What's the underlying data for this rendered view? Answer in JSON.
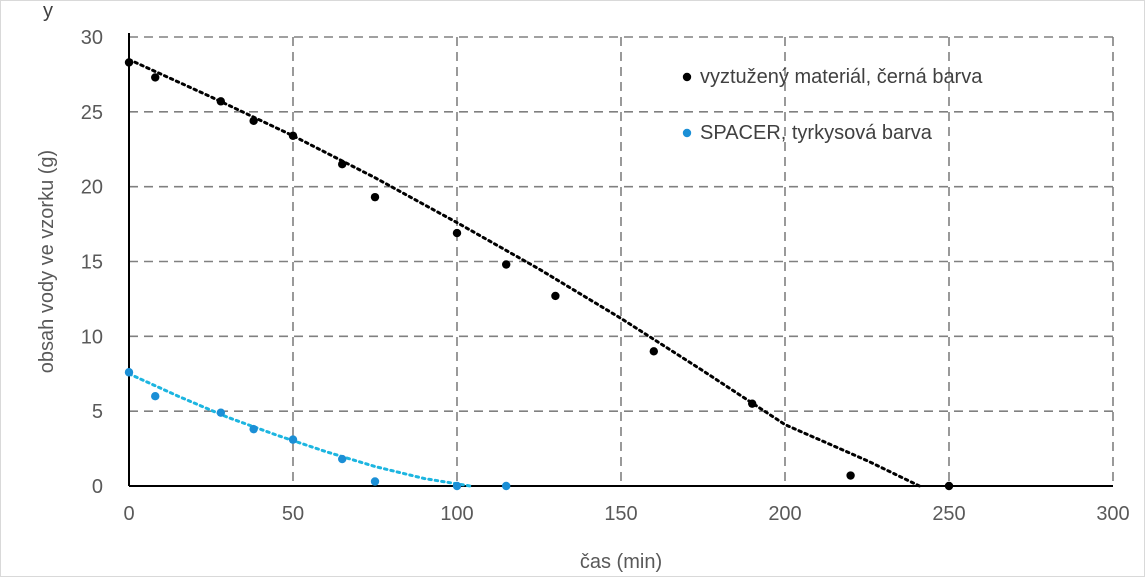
{
  "header_fragment": "y",
  "chart_data": {
    "type": "scatter",
    "title": "",
    "xlabel": "čas (min)",
    "ylabel": "obsah vody ve vzorku (g)",
    "xlim": [
      0,
      300
    ],
    "ylim": [
      0,
      30
    ],
    "x_ticks": [
      0,
      50,
      100,
      150,
      200,
      250,
      300
    ],
    "y_ticks": [
      0,
      5,
      10,
      15,
      20,
      25,
      30
    ],
    "grid": true,
    "grid_style": "dashed",
    "legend_position": "top-right",
    "series": [
      {
        "name": "vyztužený materiál, černá barva",
        "color": "#000000",
        "points": [
          [
            0,
            28.3
          ],
          [
            8,
            27.3
          ],
          [
            28,
            25.7
          ],
          [
            38,
            24.4
          ],
          [
            50,
            23.4
          ],
          [
            65,
            21.5
          ],
          [
            75,
            19.3
          ],
          [
            100,
            16.9
          ],
          [
            115,
            14.8
          ],
          [
            130,
            12.7
          ],
          [
            160,
            9.0
          ],
          [
            190,
            5.5
          ],
          [
            220,
            0.7
          ],
          [
            250,
            0.0
          ]
        ],
        "trendline": {
          "style": "dotted",
          "points": [
            [
              0,
              28.5
            ],
            [
              25,
              26.0
            ],
            [
              50,
              23.4
            ],
            [
              75,
              20.6
            ],
            [
              100,
              17.6
            ],
            [
              125,
              14.5
            ],
            [
              150,
              11.2
            ],
            [
              175,
              7.7
            ],
            [
              200,
              4.1
            ],
            [
              225,
              1.7
            ],
            [
              241,
              0.0
            ]
          ]
        }
      },
      {
        "name": "SPACER, tyrkysová barva",
        "color": "#1b8fd6",
        "trend_color": "#1cb5e0",
        "points": [
          [
            0,
            7.6
          ],
          [
            8,
            6.0
          ],
          [
            28,
            4.9
          ],
          [
            38,
            3.8
          ],
          [
            50,
            3.1
          ],
          [
            65,
            1.8
          ],
          [
            75,
            0.3
          ],
          [
            100,
            0.0
          ],
          [
            115,
            0.0
          ]
        ],
        "trendline": {
          "style": "dotted",
          "points": [
            [
              0,
              7.5
            ],
            [
              15,
              6.0
            ],
            [
              30,
              4.6
            ],
            [
              45,
              3.4
            ],
            [
              60,
              2.3
            ],
            [
              75,
              1.3
            ],
            [
              90,
              0.5
            ],
            [
              104,
              0.0
            ]
          ]
        }
      }
    ]
  }
}
